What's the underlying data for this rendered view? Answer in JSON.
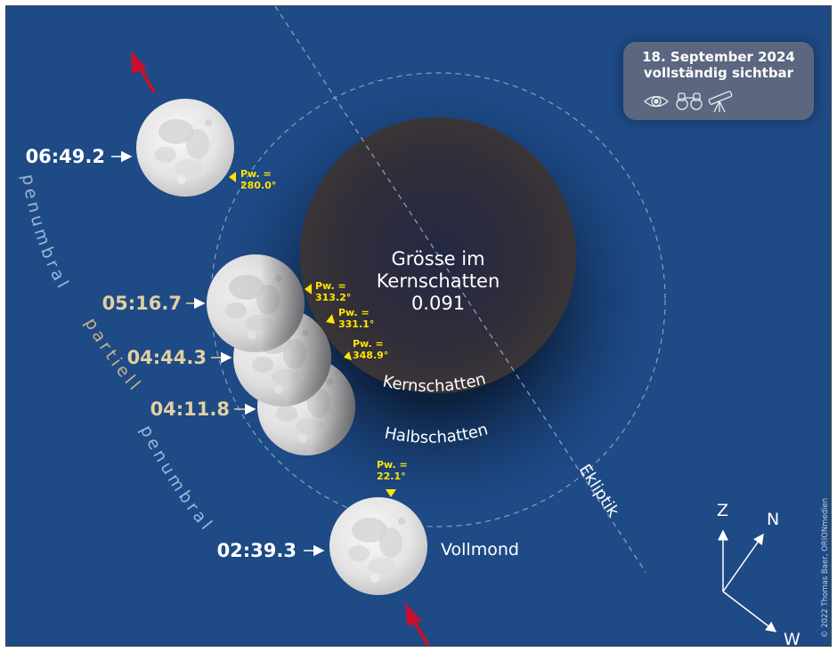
{
  "info_box": {
    "date": "18. September 2024",
    "visibility": "vollständig sichtbar",
    "icons": [
      "eye-icon",
      "binoculars-icon",
      "telescope-icon"
    ]
  },
  "umbra_label": {
    "line1": "Grösse im",
    "line2": "Kernschatten",
    "value": "0.091"
  },
  "shadow_labels": {
    "umbra": "Kernschatten",
    "penumbra": "Halbschatten",
    "ecliptic": "Ekliptik"
  },
  "phase_labels": {
    "penumbral_top": "penumbral",
    "partial": "partiell",
    "penumbral_bottom": "penumbral"
  },
  "moon_positions": [
    {
      "time": "06:49.2",
      "pw_label": "Pw. =",
      "pw_value": "280.0°"
    },
    {
      "time": "05:16.7",
      "pw_label": "Pw. =",
      "pw_value": "313.2°"
    },
    {
      "time": "04:44.3",
      "pw_label": "Pw. =",
      "pw_value": "331.1°"
    },
    {
      "time": "04:11.8",
      "pw_label": "Pw. =",
      "pw_value": "348.9°"
    },
    {
      "time": "02:39.3",
      "pw_label": "Pw. =",
      "pw_value": "22.1°"
    }
  ],
  "full_moon_label": "Vollmond",
  "compass": {
    "zenith": "Z",
    "north": "N",
    "west": "W"
  },
  "credit": "© 2022 Thomas Baer, ORIONmedien",
  "colors": {
    "background": "#1e4a86",
    "time_white": "#ffffff",
    "time_beige": "#e2cfa3",
    "position_angle": "#ffe600",
    "arrow": "#c8102e"
  }
}
